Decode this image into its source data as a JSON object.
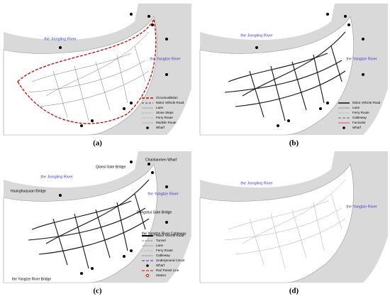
{
  "panels": [
    {
      "label": "(a)",
      "rivers": [
        "the Jiangling River",
        "the Yangtze River"
      ],
      "legend": [
        "Circumvallation",
        "Motor Vehicle Road",
        "Lane",
        "Stone Steps",
        "Ferry Route",
        "Mudslic Route",
        "Wharf"
      ]
    },
    {
      "label": "(b)",
      "rivers": [
        "the Jiangling River",
        "the Yangtze River"
      ],
      "legend": [
        "Motor Vehicle Road",
        "Lane",
        "Ferry Route",
        "Cableway",
        "Funicular",
        "Wharf"
      ]
    },
    {
      "label": "(c)",
      "rivers": [
        "the Jiangling River",
        "the Yangtze River"
      ],
      "annotations": [
        "Chaotianmen Wharf",
        "Qiansi Gate Bridge",
        "Huanghuayuan Bridge",
        "Dongshui Gate Bridge",
        "the Yangtze River Cableway",
        "the Yangtze River Bridge"
      ],
      "legend": [
        "Motor Vehicle Road",
        "Tunnel",
        "Lane",
        "Ferry Route",
        "Cableway",
        "Underground Circuit",
        "Wharf",
        "Rail Transit Line",
        "Station"
      ]
    },
    {
      "label": "(d)",
      "rivers": [
        "the Jiangling River",
        "the Yangtze River"
      ]
    }
  ]
}
